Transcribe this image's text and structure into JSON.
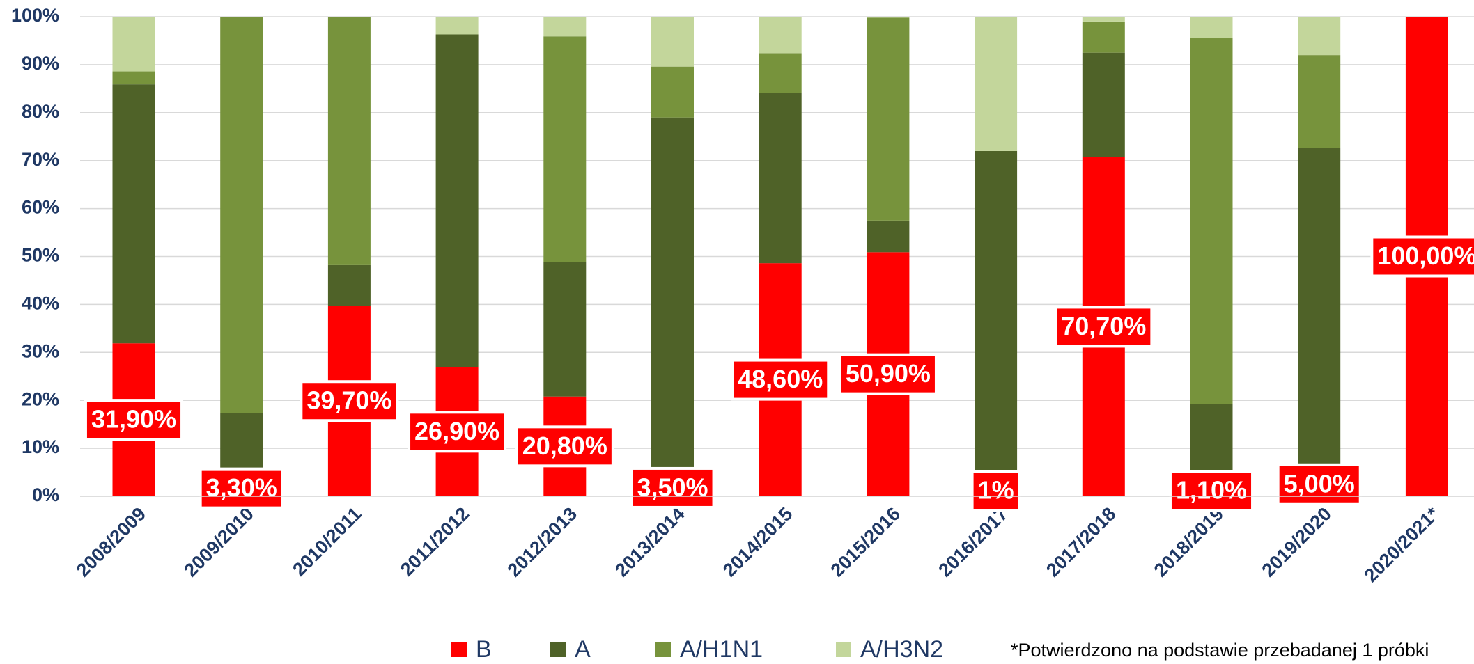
{
  "chart_data": {
    "type": "stacked_bar",
    "categories": [
      "2008/2009",
      "2009/2010",
      "2010/2011",
      "2011/2012",
      "2012/2013",
      "2013/2014",
      "2014/2015",
      "2015/2016",
      "2016/2017",
      "2017/2018",
      "2018/2019",
      "2019/2020",
      "2020/2021*"
    ],
    "series": [
      {
        "name": "B",
        "color": "#ff0000",
        "values": [
          31.9,
          3.3,
          39.7,
          26.9,
          20.8,
          3.5,
          48.6,
          50.9,
          1,
          70.7,
          1.1,
          5.0,
          100
        ],
        "value_labels": [
          "31,90%",
          "3,30%",
          "39,70%",
          "26,90%",
          "20,80%",
          "3,50%",
          "48,60%",
          "50,90%",
          "1%",
          "70,70%",
          "1,10%",
          "5,00%",
          "100,00%"
        ]
      },
      {
        "name": "A",
        "color": "#4f6228",
        "values": [
          54.0,
          14.0,
          8.5,
          69.4,
          28.0,
          75.5,
          35.5,
          6.6,
          71.0,
          21.8,
          18.1,
          67.7,
          0
        ]
      },
      {
        "name": "A/H1N1",
        "color": "#77933c",
        "values": [
          2.7,
          82.7,
          51.8,
          0,
          47.1,
          10.6,
          8.3,
          42.3,
          0,
          6.5,
          76.3,
          19.3,
          0
        ]
      },
      {
        "name": "A/H3N2",
        "color": "#c3d69b",
        "values": [
          11.4,
          0,
          0,
          3.7,
          4.1,
          10.4,
          7.6,
          0.2,
          28.0,
          1.0,
          4.5,
          8.0,
          0
        ]
      }
    ],
    "ylim": [
      0,
      100
    ],
    "yticks": [
      {
        "value": 0,
        "label": "0%"
      },
      {
        "value": 10,
        "label": "10%"
      },
      {
        "value": 20,
        "label": "20%"
      },
      {
        "value": 30,
        "label": "30%"
      },
      {
        "value": 40,
        "label": "40%"
      },
      {
        "value": 50,
        "label": "50%"
      },
      {
        "value": 60,
        "label": "60%"
      },
      {
        "value": 70,
        "label": "70%"
      },
      {
        "value": 80,
        "label": "80%"
      },
      {
        "value": 90,
        "label": "90%"
      },
      {
        "value": 100,
        "label": "100%"
      }
    ],
    "grid": true,
    "legend": "bottom",
    "note": "*Potwierdzono na podstawie przebadanej 1 próbki"
  }
}
